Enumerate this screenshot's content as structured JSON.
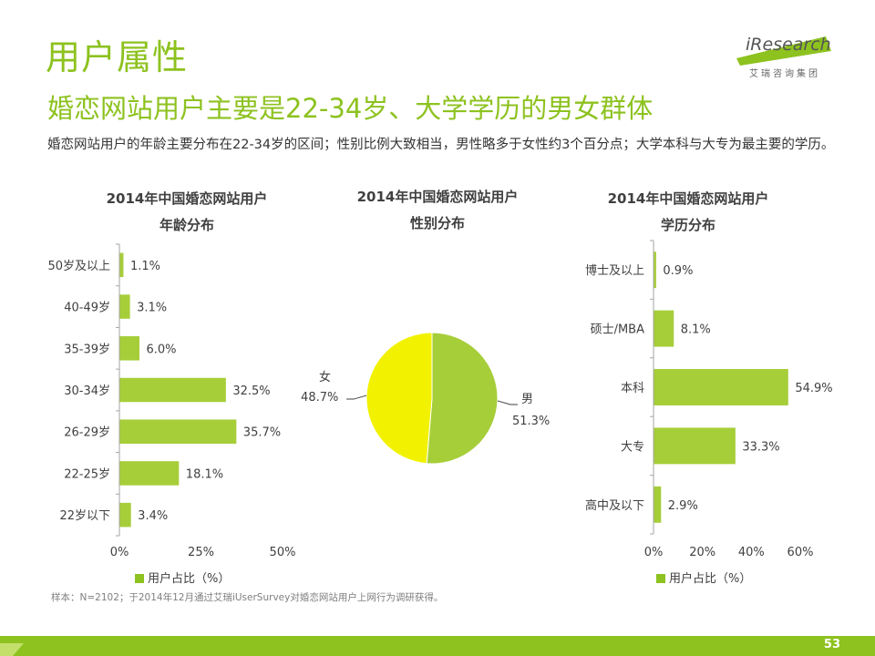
{
  "header": {
    "title": "用户属性",
    "subtitle": "婚恋网站用户主要是22-34岁、大学学历的男女群体",
    "description": "婚恋网站用户的年龄主要分布在22-34岁的区间；性别比例大致相当，男性略多于女性约3个百分点；大学本科与大专为最主要的学历。"
  },
  "logo": {
    "brand": "iResearch",
    "cn": "艾瑞咨询集团"
  },
  "legend_label": "用户占比（%）",
  "note": "样本：N=2102；于2014年12月通过艾瑞iUserSurvey对婚恋网站用户上网行为调研获得。",
  "page_number": "53",
  "colors": {
    "accent": "#8DC21F",
    "yellow": "#F2F200",
    "bar": "#A6CE39"
  },
  "chart_data": [
    {
      "type": "bar",
      "orientation": "horizontal",
      "title": [
        "2014年中国婚恋网站用户",
        "年龄分布"
      ],
      "categories": [
        "50岁及以上",
        "40-49岁",
        "35-39岁",
        "30-34岁",
        "26-29岁",
        "22-25岁",
        "22岁以下"
      ],
      "values": [
        1.1,
        3.1,
        6.0,
        32.5,
        35.7,
        18.1,
        3.4
      ],
      "labels": [
        "1.1%",
        "3.1%",
        "6.0%",
        "32.5%",
        "35.7%",
        "18.1%",
        "3.4%"
      ],
      "xlim": [
        0,
        50
      ],
      "xticks": [
        "0%",
        "25%",
        "50%"
      ],
      "legend": "用户占比（%）"
    },
    {
      "type": "pie",
      "title": [
        "2014年中国婚恋网站用户",
        "性别分布"
      ],
      "slices": [
        {
          "name": "男",
          "value": 51.3,
          "label": "51.3%",
          "color": "#A6CE39"
        },
        {
          "name": "女",
          "value": 48.7,
          "label": "48.7%",
          "color": "#F2F200"
        }
      ]
    },
    {
      "type": "bar",
      "orientation": "horizontal",
      "title": [
        "2014年中国婚恋网站用户",
        "学历分布"
      ],
      "categories": [
        "博士及以上",
        "硕士/MBA",
        "本科",
        "大专",
        "高中及以下"
      ],
      "values": [
        0.9,
        8.1,
        54.9,
        33.3,
        2.9
      ],
      "labels": [
        "0.9%",
        "8.1%",
        "54.9%",
        "33.3%",
        "2.9%"
      ],
      "xlim": [
        0,
        60
      ],
      "xticks": [
        "0%",
        "20%",
        "40%",
        "60%"
      ],
      "legend": "用户占比（%）"
    }
  ]
}
